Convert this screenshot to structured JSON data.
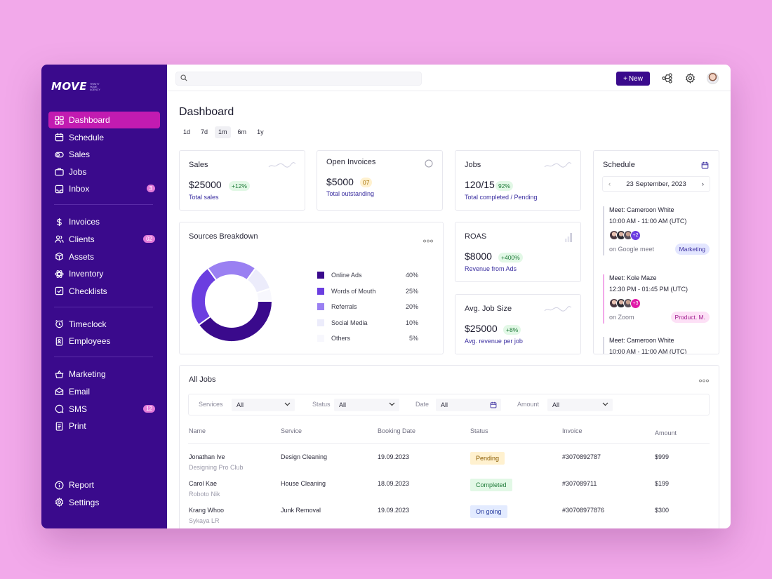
{
  "brand": {
    "name": "MOVE",
    "tagline": "TRINITY HOME AGENCY"
  },
  "search": {
    "placeholder": ""
  },
  "topbar": {
    "new_label": "New"
  },
  "nav": {
    "group1": [
      {
        "label": "Dashboard",
        "icon": "grid-icon",
        "active": true
      },
      {
        "label": "Schedule",
        "icon": "calendar-icon"
      },
      {
        "label": "Sales",
        "icon": "sales-icon"
      },
      {
        "label": "Jobs",
        "icon": "briefcase-icon"
      },
      {
        "label": "Inbox",
        "icon": "inbox-icon",
        "badge": "3"
      }
    ],
    "group2": [
      {
        "label": "Invoices",
        "icon": "dollar-icon"
      },
      {
        "label": "Clients",
        "icon": "users-icon",
        "badge": "02"
      },
      {
        "label": "Assets",
        "icon": "box-icon"
      },
      {
        "label": "Inventory",
        "icon": "atom-icon"
      },
      {
        "label": "Checklists",
        "icon": "checklist-icon"
      }
    ],
    "group3": [
      {
        "label": "Timeclock",
        "icon": "alarm-clock-icon"
      },
      {
        "label": "Employees",
        "icon": "id-badge-icon"
      }
    ],
    "group4": [
      {
        "label": "Marketing",
        "icon": "basket-icon"
      },
      {
        "label": "Email",
        "icon": "mail-icon"
      },
      {
        "label": "SMS",
        "icon": "chat-icon",
        "badge": "12"
      },
      {
        "label": "Print",
        "icon": "document-icon"
      }
    ],
    "bottom": [
      {
        "label": "Report",
        "icon": "info-icon"
      },
      {
        "label": "Settings",
        "icon": "gear-icon"
      }
    ]
  },
  "page": {
    "title": "Dashboard",
    "ranges": [
      "1d",
      "7d",
      "1m",
      "6m",
      "1y"
    ],
    "active_range": "1m"
  },
  "cards": {
    "sales": {
      "title": "Sales",
      "value": "$25000",
      "chip": "+12%",
      "sub": "Total sales"
    },
    "invoices": {
      "title": "Open Invoices",
      "value": "$5000",
      "chip": "07",
      "sub": "Total outstanding"
    },
    "jobs": {
      "title": "Jobs",
      "value": "120/15",
      "chip": "92%",
      "sub": "Total completed / Pending"
    },
    "roas": {
      "title": "ROAS",
      "value": "$8000",
      "chip": "+400%",
      "sub": "Revenue from Ads"
    },
    "avg_job": {
      "title": "Avg. Job Size",
      "value": "$25000",
      "chip": "+8%",
      "sub": "Avg. revenue per job"
    }
  },
  "sources": {
    "title": "Sources Breakdown",
    "items": [
      {
        "label": "Online Ads",
        "value": "40%",
        "color": "#3a0a8c"
      },
      {
        "label": "Words of Mouth",
        "value": "25%",
        "color": "#6b3ee0"
      },
      {
        "label": "Referrals",
        "value": "20%",
        "color": "#9a80f2"
      },
      {
        "label": "Social Media",
        "value": "10%",
        "color": "#ececfb"
      },
      {
        "label": "Others",
        "value": "5%",
        "color": "#f7f7fd"
      }
    ]
  },
  "chart_data": {
    "type": "pie",
    "title": "Sources Breakdown",
    "categories": [
      "Online Ads",
      "Words of Mouth",
      "Referrals",
      "Social Media",
      "Others"
    ],
    "values": [
      40,
      25,
      20,
      10,
      5
    ],
    "colors": [
      "#3a0a8c",
      "#6b3ee0",
      "#9a80f2",
      "#ececfb",
      "#f7f7fd"
    ],
    "legend": "right"
  },
  "schedule": {
    "title": "Schedule",
    "date": "23 September, 2023",
    "events": [
      {
        "title": "Meet: Cameroon White",
        "time": "10:00 AM - 11:00 AM (UTC)",
        "more": "+2",
        "location": "on Google meet",
        "tag": "Marketing",
        "tag_bg": "#e3e6ff",
        "tag_fg": "#3b2fa0",
        "bar": "#d9d9e3",
        "more_bg": "#6b3ee0"
      },
      {
        "title": "Meet: Kole Maze",
        "time": "12:30 PM - 01:45 PM (UTC)",
        "more": "+3",
        "location": "on Zoom",
        "tag": "Product. M.",
        "tag_bg": "#fde0f6",
        "tag_fg": "#a01a8e",
        "bar": "#f2a9ea",
        "more_bg": "#e01aa8"
      },
      {
        "title": "Meet: Cameroon White",
        "time": "10:00 AM - 11:00 AM (UTC)"
      }
    ]
  },
  "jobs_table": {
    "title": "All Jobs",
    "filters": [
      {
        "label": "Services",
        "value": "All"
      },
      {
        "label": "Status",
        "value": "All"
      },
      {
        "label": "Date",
        "value": "All"
      },
      {
        "label": "Amount",
        "value": "All"
      }
    ],
    "columns": [
      "Name",
      "Service",
      "Booking Date",
      "Status",
      "Invoice",
      "Amount"
    ],
    "rows": [
      {
        "name": "Jonathan Ive",
        "company": "Designing Pro Club",
        "service": "Design Cleaning",
        "date": "19.09.2023",
        "status": "Pending",
        "status_bg": "#fff1cf",
        "status_fg": "#8a5b00",
        "invoice": "#3070892787",
        "amount": "$999"
      },
      {
        "name": "Carol Kae",
        "company": "Roboto Nik",
        "service": "House Cleaning",
        "date": "18.09.2023",
        "status": "Completed",
        "status_bg": "#e2f8e6",
        "status_fg": "#1e7a38",
        "invoice": "#307089711",
        "amount": "$199"
      },
      {
        "name": "Krang Whoo",
        "company": "Sykaya LR",
        "service": "Junk Removal",
        "date": "19.09.2023",
        "status": "On going",
        "status_bg": "#e3ebff",
        "status_fg": "#2b3fa0",
        "invoice": "#30708977876",
        "amount": "$300"
      }
    ]
  }
}
